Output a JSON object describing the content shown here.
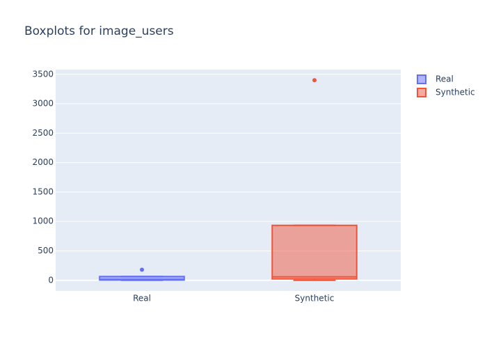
{
  "chart_data": {
    "type": "box",
    "title": "Boxplots for image_users",
    "series": [
      {
        "name": "Real",
        "color": "#636efa",
        "lowerfence": 0,
        "q1": 5,
        "median": 15,
        "q3": 65,
        "upperfence": 65,
        "outliers": [
          180
        ]
      },
      {
        "name": "Synthetic",
        "color": "#ef553b",
        "lowerfence": 0,
        "q1": 24,
        "median": 59,
        "q3": 934,
        "upperfence": 934,
        "outliers": [
          3400
        ]
      }
    ],
    "ylim": [
      -180,
      3580
    ],
    "yticks": [
      0,
      500,
      1000,
      1500,
      2000,
      2500,
      3000,
      3500
    ],
    "grid": true,
    "legend": "top-right"
  }
}
